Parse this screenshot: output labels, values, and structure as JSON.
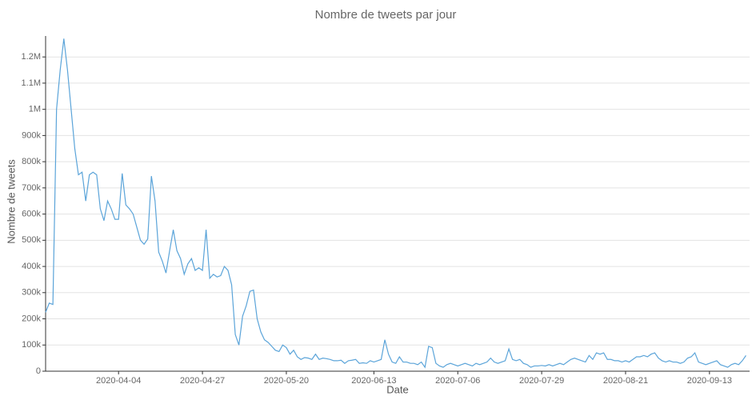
{
  "chart_data": {
    "type": "line",
    "title": "Nombre de tweets par jour",
    "x_label": "Date",
    "y_label": "Nombre de tweets",
    "x": [
      "2020-03-15",
      "2020-03-16",
      "2020-03-17",
      "2020-03-18",
      "2020-03-19",
      "2020-03-20",
      "2020-03-21",
      "2020-03-22",
      "2020-03-23",
      "2020-03-24",
      "2020-03-25",
      "2020-03-26",
      "2020-03-27",
      "2020-03-28",
      "2020-03-29",
      "2020-03-30",
      "2020-03-31",
      "2020-04-01",
      "2020-04-02",
      "2020-04-03",
      "2020-04-04",
      "2020-04-05",
      "2020-04-06",
      "2020-04-07",
      "2020-04-08",
      "2020-04-09",
      "2020-04-10",
      "2020-04-11",
      "2020-04-12",
      "2020-04-13",
      "2020-04-14",
      "2020-04-15",
      "2020-04-16",
      "2020-04-17",
      "2020-04-18",
      "2020-04-19",
      "2020-04-20",
      "2020-04-21",
      "2020-04-22",
      "2020-04-23",
      "2020-04-24",
      "2020-04-25",
      "2020-04-26",
      "2020-04-27",
      "2020-04-28",
      "2020-04-29",
      "2020-04-30",
      "2020-05-01",
      "2020-05-02",
      "2020-05-03",
      "2020-05-04",
      "2020-05-05",
      "2020-05-06",
      "2020-05-07",
      "2020-05-08",
      "2020-05-09",
      "2020-05-10",
      "2020-05-11",
      "2020-05-12",
      "2020-05-13",
      "2020-05-14",
      "2020-05-15",
      "2020-05-16",
      "2020-05-17",
      "2020-05-18",
      "2020-05-19",
      "2020-05-20",
      "2020-05-21",
      "2020-05-22",
      "2020-05-23",
      "2020-05-24",
      "2020-05-25",
      "2020-05-26",
      "2020-05-27",
      "2020-05-28",
      "2020-05-29",
      "2020-05-30",
      "2020-05-31",
      "2020-06-01",
      "2020-06-02",
      "2020-06-03",
      "2020-06-04",
      "2020-06-05",
      "2020-06-06",
      "2020-06-07",
      "2020-06-08",
      "2020-06-09",
      "2020-06-10",
      "2020-06-11",
      "2020-06-12",
      "2020-06-13",
      "2020-06-14",
      "2020-06-15",
      "2020-06-16",
      "2020-06-17",
      "2020-06-18",
      "2020-06-19",
      "2020-06-20",
      "2020-06-21",
      "2020-06-22",
      "2020-06-23",
      "2020-06-24",
      "2020-06-25",
      "2020-06-26",
      "2020-06-27",
      "2020-06-28",
      "2020-06-29",
      "2020-06-30",
      "2020-07-01",
      "2020-07-02",
      "2020-07-03",
      "2020-07-04",
      "2020-07-05",
      "2020-07-06",
      "2020-07-07",
      "2020-07-08",
      "2020-07-09",
      "2020-07-10",
      "2020-07-11",
      "2020-07-12",
      "2020-07-13",
      "2020-07-14",
      "2020-07-15",
      "2020-07-16",
      "2020-07-17",
      "2020-07-18",
      "2020-07-19",
      "2020-07-20",
      "2020-07-21",
      "2020-07-22",
      "2020-07-23",
      "2020-07-24",
      "2020-07-25",
      "2020-07-26",
      "2020-07-27",
      "2020-07-28",
      "2020-07-29",
      "2020-07-30",
      "2020-07-31",
      "2020-08-01",
      "2020-08-02",
      "2020-08-03",
      "2020-08-04",
      "2020-08-05",
      "2020-08-06",
      "2020-08-07",
      "2020-08-08",
      "2020-08-09",
      "2020-08-10",
      "2020-08-11",
      "2020-08-12",
      "2020-08-13",
      "2020-08-14",
      "2020-08-15",
      "2020-08-16",
      "2020-08-17",
      "2020-08-18",
      "2020-08-19",
      "2020-08-20",
      "2020-08-21",
      "2020-08-22",
      "2020-08-23",
      "2020-08-24",
      "2020-08-25",
      "2020-08-26",
      "2020-08-27",
      "2020-08-28",
      "2020-08-29",
      "2020-08-30",
      "2020-08-31",
      "2020-09-01",
      "2020-09-02",
      "2020-09-03",
      "2020-09-04",
      "2020-09-05",
      "2020-09-06",
      "2020-09-07",
      "2020-09-08",
      "2020-09-09",
      "2020-09-10",
      "2020-09-11",
      "2020-09-12",
      "2020-09-13",
      "2020-09-14",
      "2020-09-15",
      "2020-09-16",
      "2020-09-17",
      "2020-09-18",
      "2020-09-19",
      "2020-09-20",
      "2020-09-21",
      "2020-09-22",
      "2020-09-23"
    ],
    "values": [
      225000,
      260000,
      255000,
      1000000,
      1150000,
      1270000,
      1150000,
      1000000,
      850000,
      750000,
      760000,
      650000,
      750000,
      760000,
      750000,
      620000,
      575000,
      650000,
      620000,
      580000,
      580000,
      755000,
      635000,
      620000,
      600000,
      550000,
      500000,
      485000,
      505000,
      745000,
      650000,
      455000,
      420000,
      375000,
      460000,
      540000,
      460000,
      430000,
      370000,
      410000,
      430000,
      385000,
      395000,
      385000,
      540000,
      355000,
      370000,
      360000,
      365000,
      400000,
      385000,
      330000,
      140000,
      100000,
      210000,
      250000,
      305000,
      310000,
      200000,
      150000,
      120000,
      110000,
      95000,
      80000,
      75000,
      100000,
      90000,
      65000,
      80000,
      55000,
      45000,
      52000,
      50000,
      45000,
      65000,
      45000,
      50000,
      48000,
      45000,
      40000,
      40000,
      42000,
      30000,
      40000,
      42000,
      45000,
      30000,
      32000,
      30000,
      40000,
      35000,
      40000,
      45000,
      120000,
      65000,
      35000,
      30000,
      55000,
      35000,
      35000,
      30000,
      30000,
      25000,
      35000,
      15000,
      95000,
      90000,
      30000,
      20000,
      15000,
      25000,
      30000,
      25000,
      20000,
      25000,
      30000,
      25000,
      20000,
      30000,
      25000,
      30000,
      35000,
      50000,
      35000,
      30000,
      35000,
      40000,
      85000,
      45000,
      40000,
      45000,
      30000,
      25000,
      15000,
      20000,
      20000,
      22000,
      20000,
      25000,
      20000,
      25000,
      30000,
      25000,
      35000,
      45000,
      50000,
      45000,
      40000,
      35000,
      60000,
      45000,
      70000,
      65000,
      70000,
      45000,
      45000,
      40000,
      40000,
      35000,
      40000,
      35000,
      45000,
      55000,
      55000,
      60000,
      55000,
      65000,
      70000,
      50000,
      40000,
      35000,
      40000,
      35000,
      35000,
      30000,
      35000,
      50000,
      55000,
      70000,
      35000,
      30000,
      25000,
      30000,
      35000,
      40000,
      25000,
      20000,
      15000,
      25000,
      30000,
      25000,
      40000,
      60000
    ],
    "color": "#5ba4d9",
    "xlim": [
      "2020-03-15",
      "2020-09-24"
    ],
    "xticks": [
      "2020-04-04",
      "2020-04-27",
      "2020-05-20",
      "2020-06-13",
      "2020-07-06",
      "2020-07-29",
      "2020-08-21",
      "2020-09-13"
    ],
    "ylim": [
      0,
      1280000
    ],
    "yticks": [
      0,
      {
        "value": 100000,
        "label": "100k"
      },
      {
        "value": 200000,
        "label": "200k"
      },
      {
        "value": 300000,
        "label": "300k"
      },
      {
        "value": 400000,
        "label": "400k"
      },
      {
        "value": 500000,
        "label": "500k"
      },
      {
        "value": 600000,
        "label": "600k"
      },
      {
        "value": 700000,
        "label": "700k"
      },
      {
        "value": 800000,
        "label": "800k"
      },
      {
        "value": 900000,
        "label": "900k"
      },
      {
        "value": 1000000,
        "label": "1M"
      },
      {
        "value": 1100000,
        "label": "1.1M"
      },
      {
        "value": 1200000,
        "label": "1.2M"
      }
    ],
    "grid": true
  }
}
